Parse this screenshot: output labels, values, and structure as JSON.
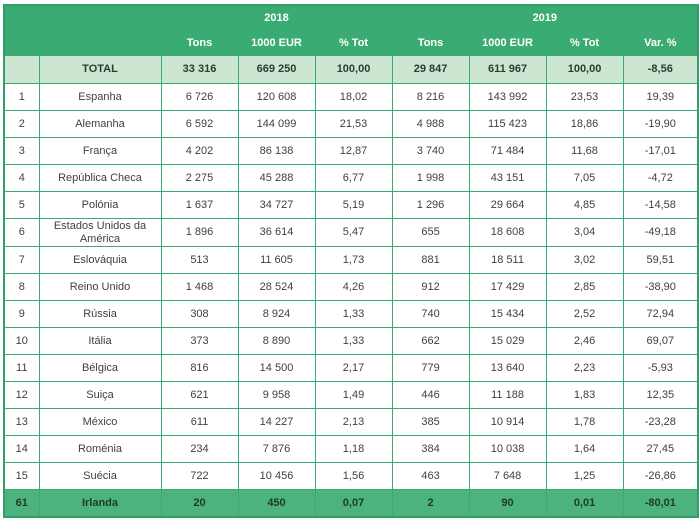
{
  "colors": {
    "header_green": "#3aab72",
    "grid_green": "#3aab72",
    "outer_border_green": "#2f9f67",
    "total_row_light_green": "#cde6d2",
    "highlight_row_green": "#4db37e",
    "data_text": "#3f3f3f"
  },
  "chart_data": {
    "type": "table",
    "year_groups": [
      {
        "label": "2018",
        "colspan": 3
      },
      {
        "label": "2019",
        "colspan": 4
      }
    ],
    "sub_columns": [
      "Tons",
      "1000 EUR",
      "% Tot",
      "Tons",
      "1000 EUR",
      "% Tot",
      "Var. %"
    ],
    "rows": [
      {
        "rank": "",
        "country": "TOTAL",
        "values": [
          "33 316",
          "669 250",
          "100,00",
          "29 847",
          "611 967",
          "100,00",
          "-8,56"
        ],
        "style": "total"
      },
      {
        "rank": "1",
        "country": "Espanha",
        "values": [
          "6 726",
          "120 608",
          "18,02",
          "8 216",
          "143 992",
          "23,53",
          "19,39"
        ],
        "style": "normal"
      },
      {
        "rank": "2",
        "country": "Alemanha",
        "values": [
          "6 592",
          "144 099",
          "21,53",
          "4 988",
          "115 423",
          "18,86",
          "-19,90"
        ],
        "style": "normal"
      },
      {
        "rank": "3",
        "country": "França",
        "values": [
          "4 202",
          "86 138",
          "12,87",
          "3 740",
          "71 484",
          "11,68",
          "-17,01"
        ],
        "style": "normal"
      },
      {
        "rank": "4",
        "country": "República Checa",
        "values": [
          "2 275",
          "45 288",
          "6,77",
          "1 998",
          "43 151",
          "7,05",
          "-4,72"
        ],
        "style": "normal"
      },
      {
        "rank": "5",
        "country": "Polónia",
        "values": [
          "1 637",
          "34 727",
          "5,19",
          "1 296",
          "29 664",
          "4,85",
          "-14,58"
        ],
        "style": "normal"
      },
      {
        "rank": "6",
        "country": "Estados Unidos da América",
        "values": [
          "1 896",
          "36 614",
          "5,47",
          "655",
          "18 608",
          "3,04",
          "-49,18"
        ],
        "style": "normal"
      },
      {
        "rank": "7",
        "country": "Eslováquia",
        "values": [
          "513",
          "11 605",
          "1,73",
          "881",
          "18 511",
          "3,02",
          "59,51"
        ],
        "style": "normal"
      },
      {
        "rank": "8",
        "country": "Reino Unido",
        "values": [
          "1 468",
          "28 524",
          "4,26",
          "912",
          "17 429",
          "2,85",
          "-38,90"
        ],
        "style": "normal"
      },
      {
        "rank": "9",
        "country": "Rússia",
        "values": [
          "308",
          "8 924",
          "1,33",
          "740",
          "15 434",
          "2,52",
          "72,94"
        ],
        "style": "normal"
      },
      {
        "rank": "10",
        "country": "Itália",
        "values": [
          "373",
          "8 890",
          "1,33",
          "662",
          "15 029",
          "2,46",
          "69,07"
        ],
        "style": "normal"
      },
      {
        "rank": "11",
        "country": "Bélgica",
        "values": [
          "816",
          "14 500",
          "2,17",
          "779",
          "13 640",
          "2,23",
          "-5,93"
        ],
        "style": "normal"
      },
      {
        "rank": "12",
        "country": "Suiça",
        "values": [
          "621",
          "9 958",
          "1,49",
          "446",
          "11 188",
          "1,83",
          "12,35"
        ],
        "style": "normal"
      },
      {
        "rank": "13",
        "country": "México",
        "values": [
          "611",
          "14 227",
          "2,13",
          "385",
          "10 914",
          "1,78",
          "-23,28"
        ],
        "style": "normal"
      },
      {
        "rank": "14",
        "country": "Roménia",
        "values": [
          "234",
          "7 876",
          "1,18",
          "384",
          "10 038",
          "1,64",
          "27,45"
        ],
        "style": "normal"
      },
      {
        "rank": "15",
        "country": "Suécia",
        "values": [
          "722",
          "10 456",
          "1,56",
          "463",
          "7 648",
          "1,25",
          "-26,86"
        ],
        "style": "normal"
      },
      {
        "rank": "61",
        "country": "Irlanda",
        "values": [
          "20",
          "450",
          "0,07",
          "2",
          "90",
          "0,01",
          "-80,01"
        ],
        "style": "highlight"
      }
    ]
  }
}
